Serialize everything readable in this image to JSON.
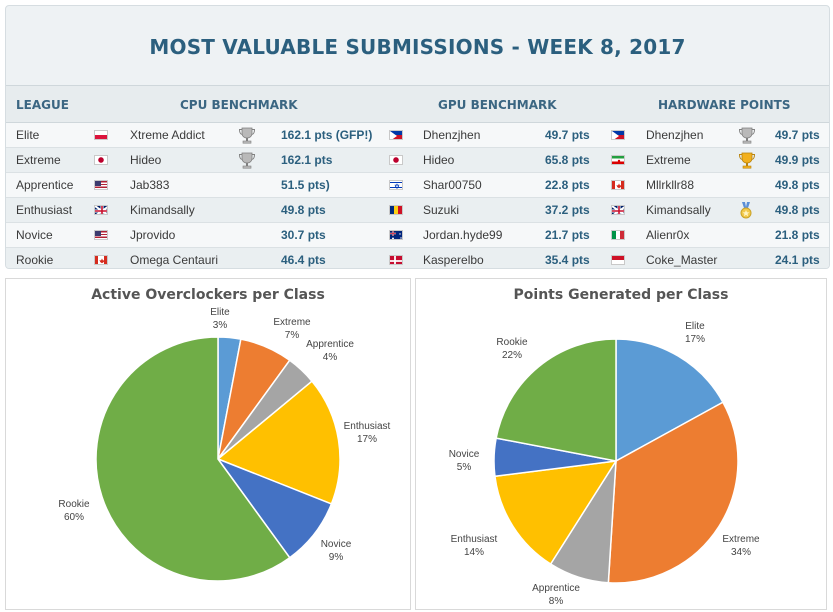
{
  "title": "MOST VALUABLE SUBMISSIONS - WEEK 8, 2017",
  "headers": {
    "league": "LEAGUE",
    "cpu": "CPU BENCHMARK",
    "gpu": "GPU BENCHMARK",
    "hw": "HARDWARE POINTS"
  },
  "rows": [
    {
      "league": "Elite",
      "cpu": {
        "user": "Xtreme Addict",
        "pts": "162.1 pts (GFP!)",
        "flag": "pl",
        "trophy": "silver"
      },
      "gpu": {
        "user": "Dhenzjhen",
        "pts": "49.7 pts",
        "flag": "ph"
      },
      "hw": {
        "user": "Dhenzjhen",
        "pts": "49.7 pts",
        "flag": "ph",
        "trophy": "silver"
      }
    },
    {
      "league": "Extreme",
      "cpu": {
        "user": "Hideo",
        "pts": "162.1 pts",
        "flag": "jp",
        "trophy": "silver"
      },
      "gpu": {
        "user": "Hideo",
        "pts": "65.8 pts",
        "flag": "jp"
      },
      "hw": {
        "user": "Extreme",
        "pts": "49.9 pts",
        "flag": "ir",
        "trophy": "gold"
      }
    },
    {
      "league": "Apprentice",
      "cpu": {
        "user": "Jab383",
        "pts": "51.5 pts)",
        "flag": "us"
      },
      "gpu": {
        "user": "Shar00750",
        "pts": "22.8 pts",
        "flag": "il"
      },
      "hw": {
        "user": "Mllrkllr88",
        "pts": "49.8 pts",
        "flag": "ca"
      }
    },
    {
      "league": "Enthusiast",
      "cpu": {
        "user": "Kimandsally",
        "pts": "49.8 pts",
        "flag": "gb"
      },
      "gpu": {
        "user": "Suzuki",
        "pts": "37.2 pts",
        "flag": "ro"
      },
      "hw": {
        "user": "Kimandsally",
        "pts": "49.8 pts",
        "flag": "gb",
        "trophy": "medal"
      }
    },
    {
      "league": "Novice",
      "cpu": {
        "user": "Jprovido",
        "pts": "30.7 pts",
        "flag": "us"
      },
      "gpu": {
        "user": "Jordan.hyde99",
        "pts": "21.7 pts",
        "flag": "au"
      },
      "hw": {
        "user": "Alienr0x",
        "pts": "21.8 pts",
        "flag": "it"
      }
    },
    {
      "league": "Rookie",
      "cpu": {
        "user": "Omega Centauri",
        "pts": "46.4 pts",
        "flag": "ca"
      },
      "gpu": {
        "user": "Kasperelbo",
        "pts": "35.4 pts",
        "flag": "dk"
      },
      "hw": {
        "user": "Coke_Master",
        "pts": "24.1 pts",
        "flag": "id"
      }
    }
  ],
  "chart_data": [
    {
      "type": "pie",
      "title": "Active Overclockers per Class",
      "categories": [
        "Elite",
        "Extreme",
        "Apprentice",
        "Enthusiast",
        "Novice",
        "Rookie"
      ],
      "values": [
        3,
        7,
        4,
        17,
        9,
        60
      ],
      "labels": [
        "3%",
        "7%",
        "4%",
        "17%",
        "9%",
        "60%"
      ],
      "colors": [
        "#5b9bd5",
        "#ed7d31",
        "#a5a5a5",
        "#ffc000",
        "#4472c4",
        "#70ad47"
      ]
    },
    {
      "type": "pie",
      "title": "Points Generated per Class",
      "categories": [
        "Elite",
        "Extreme",
        "Apprentice",
        "Enthusiast",
        "Novice",
        "Rookie"
      ],
      "values": [
        17,
        34,
        8,
        14,
        5,
        22
      ],
      "labels": [
        "17%",
        "34%",
        "8%",
        "14%",
        "5%",
        "22%"
      ],
      "colors": [
        "#5b9bd5",
        "#ed7d31",
        "#a5a5a5",
        "#ffc000",
        "#4472c4",
        "#70ad47"
      ]
    }
  ]
}
